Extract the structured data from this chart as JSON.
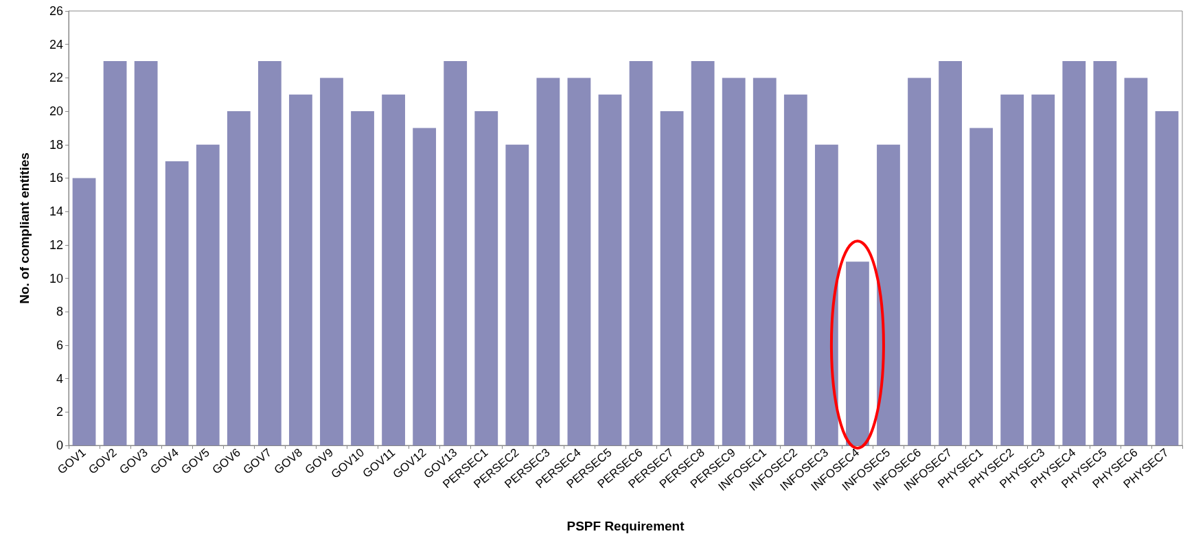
{
  "chart_data": {
    "type": "bar",
    "xlabel": "PSPF Requirement",
    "ylabel": "No. of compliant entities",
    "categories": [
      "GOV1",
      "GOV2",
      "GOV3",
      "GOV4",
      "GOV5",
      "GOV6",
      "GOV7",
      "GOV8",
      "GOV9",
      "GOV10",
      "GOV11",
      "GOV12",
      "GOV13",
      "PERSEC1",
      "PERSEC2",
      "PERSEC3",
      "PERSEC4",
      "PERSEC5",
      "PERSEC6",
      "PERSEC7",
      "PERSEC8",
      "PERSEC9",
      "INFOSEC1",
      "INFOSEC2",
      "INFOSEC3",
      "INFOSEC4",
      "INFOSEC5",
      "INFOSEC6",
      "INFOSEC7",
      "PHYSEC1",
      "PHYSEC2",
      "PHYSEC3",
      "PHYSEC4",
      "PHYSEC5",
      "PHYSEC6",
      "PHYSEC7"
    ],
    "values": [
      16,
      23,
      23,
      17,
      18,
      20,
      23,
      21,
      22,
      20,
      21,
      19,
      23,
      20,
      18,
      22,
      22,
      21,
      23,
      20,
      23,
      22,
      22,
      21,
      18,
      11,
      18,
      22,
      23,
      19,
      21,
      21,
      23,
      23,
      22,
      20
    ],
    "color": "#8a8cba",
    "ylim": [
      0,
      26
    ],
    "yticks": [
      0,
      2,
      4,
      6,
      8,
      10,
      12,
      14,
      16,
      18,
      20,
      22,
      24,
      26
    ],
    "grid": false
  }
}
